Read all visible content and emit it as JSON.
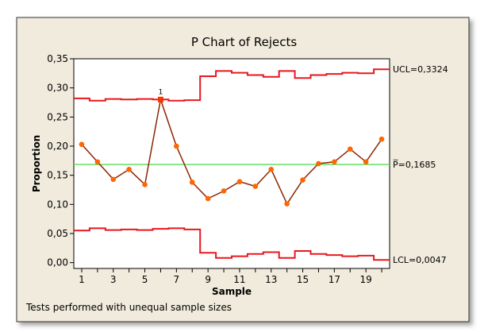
{
  "chart_data": {
    "type": "line",
    "title": "P Chart of Rejects",
    "xlabel": "Sample",
    "ylabel": "Proportion",
    "xlim": [
      0.5,
      20.5
    ],
    "ylim": [
      -0.01,
      0.35
    ],
    "x_ticks": [
      1,
      3,
      5,
      7,
      9,
      11,
      13,
      15,
      17,
      19
    ],
    "y_ticks": [
      0.0,
      0.05,
      0.1,
      0.15,
      0.2,
      0.25,
      0.3,
      0.35
    ],
    "y_tick_labels": [
      "0,00",
      "0,05",
      "0,10",
      "0,15",
      "0,20",
      "0,25",
      "0,30",
      "0,35"
    ],
    "x": [
      1,
      2,
      3,
      4,
      5,
      6,
      7,
      8,
      9,
      10,
      11,
      12,
      13,
      14,
      15,
      16,
      17,
      18,
      19,
      20
    ],
    "series": [
      {
        "values": [
          0.203,
          0.173,
          0.143,
          0.16,
          0.134,
          0.28,
          0.2,
          0.138,
          0.11,
          0.123,
          0.139,
          0.131,
          0.16,
          0.101,
          0.142,
          0.17,
          0.173,
          0.195,
          0.173,
          0.212
        ],
        "color": "#8B2500",
        "marker_color": "#FF6600"
      }
    ],
    "center_line": {
      "value": 0.1685,
      "label": "P̅=0,1685",
      "color": "#66E066"
    },
    "ucl": {
      "values": [
        0.282,
        0.278,
        0.281,
        0.28,
        0.281,
        0.28,
        0.278,
        0.279,
        0.32,
        0.329,
        0.326,
        0.322,
        0.319,
        0.329,
        0.317,
        0.322,
        0.324,
        0.326,
        0.325,
        0.332
      ],
      "label": "UCL=0,3324",
      "color": "#E8171E"
    },
    "lcl": {
      "values": [
        0.055,
        0.059,
        0.056,
        0.057,
        0.056,
        0.058,
        0.059,
        0.057,
        0.017,
        0.008,
        0.011,
        0.015,
        0.018,
        0.008,
        0.02,
        0.015,
        0.013,
        0.011,
        0.012,
        0.0047
      ],
      "label": "LCL=0,0047",
      "color": "#E8171E"
    },
    "flagged_points": [
      {
        "x": 6,
        "label": "1"
      }
    ],
    "grid": false,
    "footnote": "Tests performed with unequal sample sizes"
  }
}
